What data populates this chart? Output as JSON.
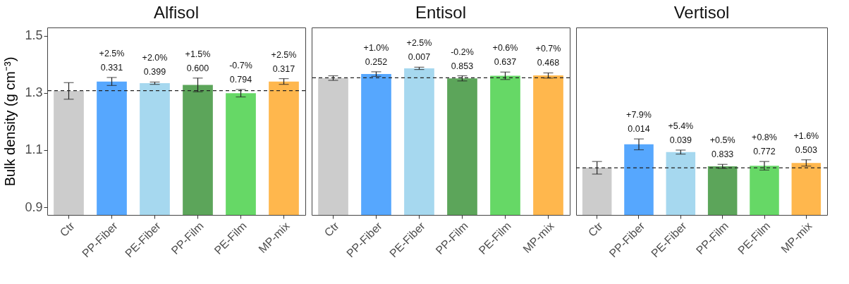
{
  "chart_data": [
    {
      "type": "bar",
      "title": "Alfisol",
      "ylabel": "Bulk density (g cm⁻³)",
      "categories": [
        "Ctr",
        "PP-Fiber",
        "PE-Fiber",
        "PP-Film",
        "PE-Film",
        "MP-mix"
      ],
      "values": [
        1.307,
        1.34,
        1.334,
        1.328,
        1.299,
        1.34
      ],
      "errors": [
        0.029,
        0.014,
        0.004,
        0.024,
        0.013,
        0.01
      ],
      "colors": [
        "#cccccc",
        "#56a7fe",
        "#a6d8ef",
        "#5ca55a",
        "#66d866",
        "#ffb74d"
      ],
      "annotations": [
        {
          "text": "+2.5%",
          "x": "PP-Fiber",
          "y": 1.34
        },
        {
          "text": "0.331",
          "x": "PP-Fiber",
          "y": 1.34
        },
        {
          "text": "+2.0%",
          "x": "PE-Fiber",
          "y": 1.334
        },
        {
          "text": "0.399",
          "x": "PE-Fiber",
          "y": 1.334
        },
        {
          "text": "+1.5%",
          "x": "PP-Film",
          "y": 1.328
        },
        {
          "text": "0.600",
          "x": "PP-Film",
          "y": 1.328
        },
        {
          "text": "-0.7%",
          "x": "PE-Film",
          "y": 1.299
        },
        {
          "text": "0.794",
          "x": "PE-Film",
          "y": 1.299
        },
        {
          "text": "+2.5%",
          "x": "MP-mix",
          "y": 1.34
        },
        {
          "text": "0.317",
          "x": "MP-mix",
          "y": 1.34
        }
      ],
      "ref_lines": [
        {
          "axis": "y",
          "value": 1.308,
          "line_style": "dashed"
        }
      ],
      "ylim": [
        0.873,
        1.529
      ],
      "yticks": [
        0.9,
        1.1,
        1.3,
        1.5
      ],
      "grid": false
    },
    {
      "type": "bar",
      "title": "Entisol",
      "categories": [
        "Ctr",
        "PP-Fiber",
        "PE-Fiber",
        "PP-Film",
        "PE-Film",
        "MP-mix"
      ],
      "values": [
        1.352,
        1.366,
        1.386,
        1.351,
        1.36,
        1.361
      ],
      "errors": [
        0.008,
        0.008,
        0.004,
        0.009,
        0.013,
        0.009
      ],
      "colors": [
        "#cccccc",
        "#56a7fe",
        "#a6d8ef",
        "#5ca55a",
        "#66d866",
        "#ffb74d"
      ],
      "annotations": [
        {
          "text": "+1.0%",
          "x": "PP-Fiber",
          "y": 1.366
        },
        {
          "text": "0.252",
          "x": "PP-Fiber",
          "y": 1.366
        },
        {
          "text": "+2.5%",
          "x": "PE-Fiber",
          "y": 1.386
        },
        {
          "text": "0.007",
          "x": "PE-Fiber",
          "y": 1.386
        },
        {
          "text": "-0.2%",
          "x": "PP-Film",
          "y": 1.351
        },
        {
          "text": "0.853",
          "x": "PP-Film",
          "y": 1.351
        },
        {
          "text": "+0.6%",
          "x": "PE-Film",
          "y": 1.36
        },
        {
          "text": "0.637",
          "x": "PE-Film",
          "y": 1.36
        },
        {
          "text": "+0.7%",
          "x": "MP-mix",
          "y": 1.361
        },
        {
          "text": "0.468",
          "x": "MP-mix",
          "y": 1.361
        }
      ],
      "ref_lines": [
        {
          "axis": "y",
          "value": 1.353,
          "line_style": "dashed"
        }
      ],
      "ylim": [
        0.873,
        1.529
      ],
      "yticks": [
        0.9,
        1.1,
        1.3,
        1.5
      ],
      "tick_labels": "x",
      "grid": false
    },
    {
      "type": "bar",
      "title": "Vertisol",
      "categories": [
        "Ctr",
        "PP-Fiber",
        "PE-Fiber",
        "PP-Film",
        "PE-Film",
        "MP-mix"
      ],
      "values": [
        1.038,
        1.12,
        1.093,
        1.043,
        1.045,
        1.055
      ],
      "errors": [
        0.022,
        0.019,
        0.007,
        0.007,
        0.015,
        0.011
      ],
      "colors": [
        "#cccccc",
        "#56a7fe",
        "#a6d8ef",
        "#5ca55a",
        "#66d866",
        "#ffb74d"
      ],
      "annotations": [
        {
          "text": "+7.9%",
          "x": "PP-Fiber",
          "y": 1.12
        },
        {
          "text": "0.014",
          "x": "PP-Fiber",
          "y": 1.12
        },
        {
          "text": "+5.4%",
          "x": "PE-Fiber",
          "y": 1.093
        },
        {
          "text": "0.039",
          "x": "PE-Fiber",
          "y": 1.093
        },
        {
          "text": "+0.5%",
          "x": "PP-Film",
          "y": 1.043
        },
        {
          "text": "0.833",
          "x": "PP-Film",
          "y": 1.043
        },
        {
          "text": "+0.8%",
          "x": "PE-Film",
          "y": 1.045
        },
        {
          "text": "0.772",
          "x": "PE-Film",
          "y": 1.045
        },
        {
          "text": "+1.6%",
          "x": "MP-mix",
          "y": 1.055
        },
        {
          "text": "0.503",
          "x": "MP-mix",
          "y": 1.055
        }
      ],
      "ref_lines": [
        {
          "axis": "y",
          "value": 1.038,
          "line_style": "dashed"
        }
      ],
      "ylim": [
        0.873,
        1.529
      ],
      "yticks": [
        0.9,
        1.1,
        1.3,
        1.5
      ],
      "tick_labels": "x",
      "grid": false
    }
  ]
}
